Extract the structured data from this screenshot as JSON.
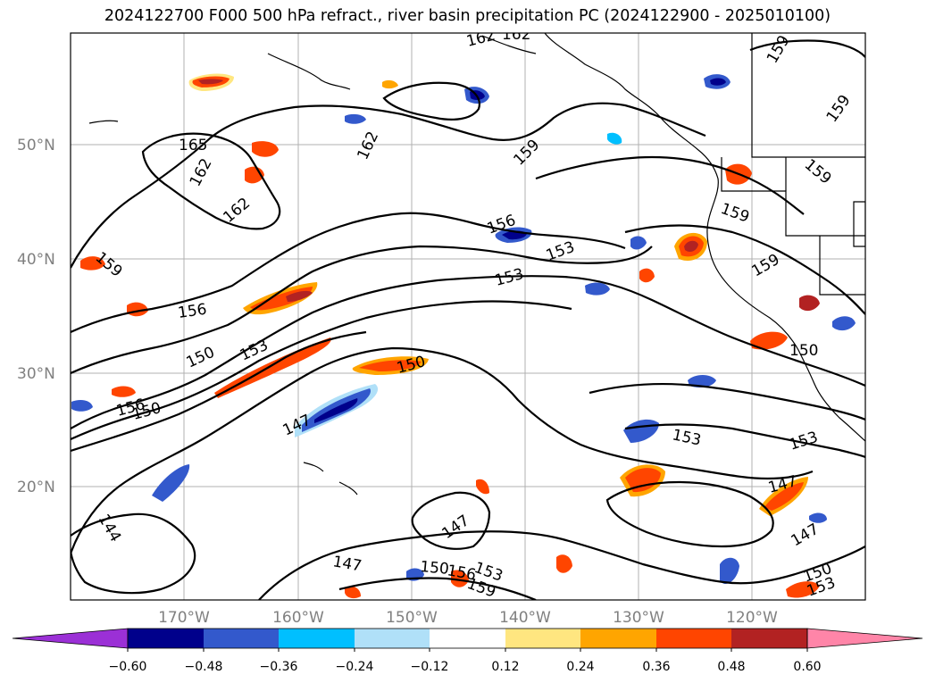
{
  "title": "2024122700 F000 500 hPa refract., river basin precipitation PC (2024122900 - 2025010100)",
  "map": {
    "lat_labels": [
      "50°N",
      "40°N",
      "30°N",
      "20°N"
    ],
    "lon_labels": [
      "170°W",
      "160°W",
      "150°W",
      "140°W",
      "130°W",
      "120°W"
    ]
  },
  "contour_labels": [
    {
      "text": "162"
    },
    {
      "text": "162"
    },
    {
      "text": "159"
    },
    {
      "text": "159"
    },
    {
      "text": "165"
    },
    {
      "text": "162"
    },
    {
      "text": "162"
    },
    {
      "text": "159"
    },
    {
      "text": "162"
    },
    {
      "text": "159"
    },
    {
      "text": "159"
    },
    {
      "text": "156"
    },
    {
      "text": "153"
    },
    {
      "text": "159"
    },
    {
      "text": "159"
    },
    {
      "text": "153"
    },
    {
      "text": "156"
    },
    {
      "text": "150"
    },
    {
      "text": "153"
    },
    {
      "text": "150"
    },
    {
      "text": "156"
    },
    {
      "text": "150"
    },
    {
      "text": "150"
    },
    {
      "text": "147"
    },
    {
      "text": "153"
    },
    {
      "text": "153"
    },
    {
      "text": "144"
    },
    {
      "text": "147"
    },
    {
      "text": "147"
    },
    {
      "text": "147"
    },
    {
      "text": "150"
    },
    {
      "text": "156"
    },
    {
      "text": "153"
    },
    {
      "text": "159"
    },
    {
      "text": "150"
    },
    {
      "text": "153"
    }
  ],
  "colorbar": {
    "colors": [
      "#9b30d6",
      "#00008b",
      "#3359cc",
      "#00bfff",
      "#b0e0f8",
      "#ffffff",
      "#ffe680",
      "#ffa500",
      "#ff4500",
      "#b22222",
      "#ff85a8"
    ],
    "ticks": [
      "−0.60",
      "−0.48",
      "−0.36",
      "−0.24",
      "−0.12",
      "0.12",
      "0.24",
      "0.36",
      "0.48",
      "0.60"
    ]
  }
}
